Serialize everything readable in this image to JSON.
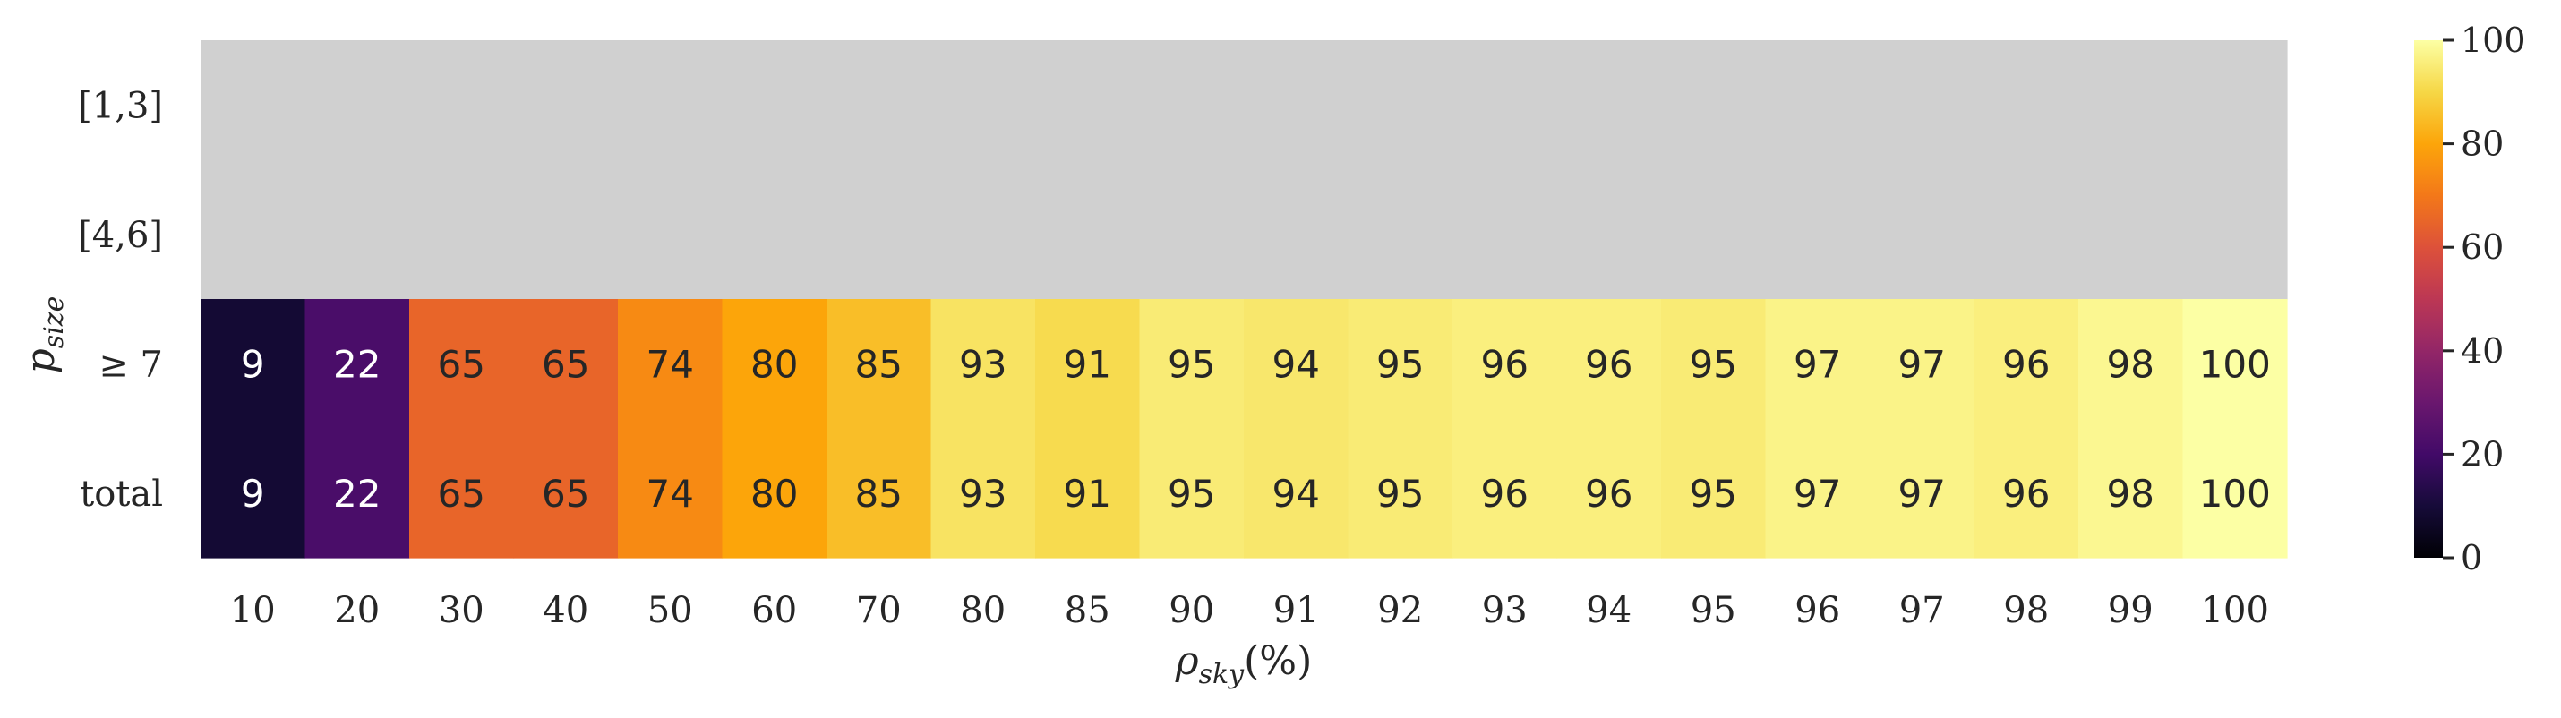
{
  "chart_data": {
    "type": "heatmap",
    "title": "",
    "x_categories": [
      "10",
      "20",
      "30",
      "40",
      "50",
      "60",
      "70",
      "80",
      "85",
      "90",
      "91",
      "92",
      "93",
      "94",
      "95",
      "96",
      "97",
      "98",
      "99",
      "100"
    ],
    "y_categories": [
      "[1,3]",
      "[4,6]",
      "≥ 7",
      "total"
    ],
    "xlabel_base": "ρ",
    "xlabel_sub": "sky",
    "xlabel_suffix": "(%)",
    "ylabel_base": "p",
    "ylabel_sub": "size",
    "values": [
      [
        null,
        null,
        null,
        null,
        null,
        null,
        null,
        null,
        null,
        null,
        null,
        null,
        null,
        null,
        null,
        null,
        null,
        null,
        null,
        null
      ],
      [
        null,
        null,
        null,
        null,
        null,
        null,
        null,
        null,
        null,
        null,
        null,
        null,
        null,
        null,
        null,
        null,
        null,
        null,
        null,
        null
      ],
      [
        9,
        22,
        65,
        65,
        74,
        80,
        85,
        93,
        91,
        95,
        94,
        95,
        96,
        96,
        95,
        97,
        97,
        96,
        98,
        100
      ],
      [
        9,
        22,
        65,
        65,
        74,
        80,
        85,
        93,
        91,
        95,
        94,
        95,
        96,
        96,
        95,
        97,
        97,
        96,
        98,
        100
      ]
    ],
    "missing_color": "#d0d0d0",
    "colormap": "inferno",
    "colorbar": {
      "min": 0,
      "max": 100,
      "ticks": [
        0,
        20,
        40,
        60,
        80,
        100
      ]
    },
    "grid": false,
    "legend": "none"
  }
}
